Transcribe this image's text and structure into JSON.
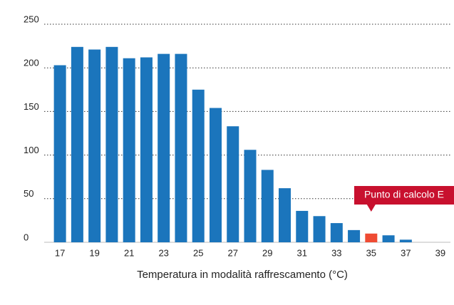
{
  "chart_data": {
    "type": "bar",
    "x_label": "Temperatura in modalità raffrescamento (°C)",
    "categories": [
      "17",
      null,
      "19",
      null,
      "21",
      null,
      "23",
      null,
      "25",
      null,
      "27",
      null,
      "29",
      null,
      "31",
      null,
      "33",
      null,
      "35",
      null,
      "37",
      null,
      "39"
    ],
    "values": [
      203,
      224,
      221,
      224,
      211,
      212,
      216,
      216,
      175,
      154,
      133,
      106,
      83,
      62,
      36,
      30,
      22,
      14,
      10,
      8,
      3,
      0,
      0
    ],
    "colors": [
      "#1b75bc",
      "#1b75bc",
      "#1b75bc",
      "#1b75bc",
      "#1b75bc",
      "#1b75bc",
      "#1b75bc",
      "#1b75bc",
      "#1b75bc",
      "#1b75bc",
      "#1b75bc",
      "#1b75bc",
      "#1b75bc",
      "#1b75bc",
      "#1b75bc",
      "#1b75bc",
      "#1b75bc",
      "#1b75bc",
      "#ef4b33",
      "#1b75bc",
      "#1b75bc",
      "#1b75bc",
      "#1b75bc"
    ],
    "annotation": "Punto di calcolo E",
    "annotation_color": "#c8102e",
    "ylim": [
      0,
      250
    ],
    "yticks": [
      0,
      50,
      100,
      150,
      200,
      250
    ],
    "grid": true
  }
}
